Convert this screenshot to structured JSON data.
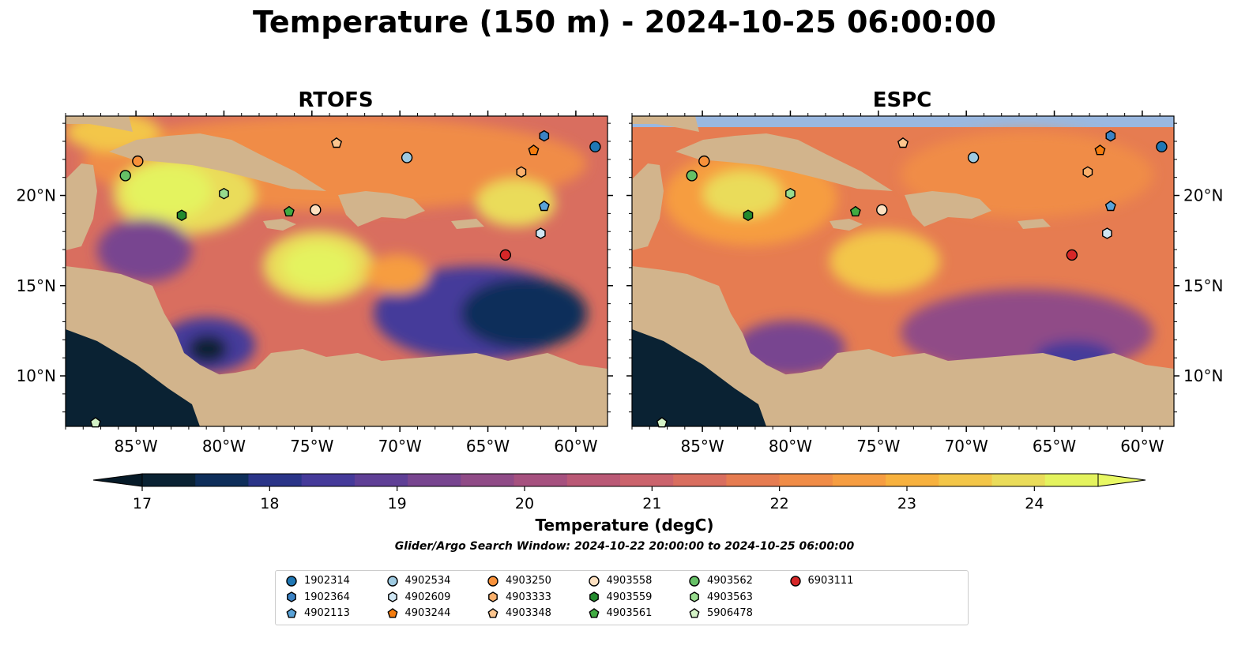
{
  "title": "Temperature (150 m) - 2024-10-25 06:00:00",
  "panels": [
    {
      "title": "RTOFS",
      "model": "rtofs"
    },
    {
      "title": "ESPC",
      "model": "espc"
    }
  ],
  "axes": {
    "lon_ticks": [
      "85°W",
      "80°W",
      "75°W",
      "70°W",
      "65°W",
      "60°W"
    ],
    "lat_ticks": [
      "20°N",
      "15°N",
      "10°N"
    ]
  },
  "colorbar": {
    "label": "Temperature (degC)",
    "ticks": [
      "17",
      "18",
      "19",
      "20",
      "21",
      "22",
      "23",
      "24"
    ],
    "colors": [
      "#0a2233",
      "#0e2e5a",
      "#2a3488",
      "#453a9a",
      "#5f3f96",
      "#784590",
      "#904b87",
      "#a6517f",
      "#ba5976",
      "#cb636c",
      "#d96e5f",
      "#e67c51",
      "#f08c47",
      "#f69d41",
      "#f7b13e",
      "#f3c648",
      "#eadc5a",
      "#e4f35e"
    ],
    "extend_low": "#061a28",
    "extend_high": "#e8f864"
  },
  "search_window": "Glider/Argo Search Window: 2024-10-22 20:00:00 to 2024-10-25 06:00:00",
  "legend": [
    {
      "id": "1902314",
      "marker": "circle",
      "color": "#1f77b4"
    },
    {
      "id": "1902364",
      "marker": "hexagon",
      "color": "#3b82c4"
    },
    {
      "id": "4902113",
      "marker": "pentagon",
      "color": "#5aa3d8"
    },
    {
      "id": "4902534",
      "marker": "circle",
      "color": "#9ecae1"
    },
    {
      "id": "4902609",
      "marker": "hexagon",
      "color": "#cfe6f3"
    },
    {
      "id": "4903244",
      "marker": "pentagon",
      "color": "#f47c0e"
    },
    {
      "id": "4903250",
      "marker": "circle",
      "color": "#f8913a"
    },
    {
      "id": "4903333",
      "marker": "hexagon",
      "color": "#fbb06c"
    },
    {
      "id": "4903348",
      "marker": "pentagon",
      "color": "#fcc58e"
    },
    {
      "id": "4903558",
      "marker": "circle",
      "color": "#fde0c0"
    },
    {
      "id": "4903559",
      "marker": "hexagon",
      "color": "#238b2e"
    },
    {
      "id": "4903561",
      "marker": "pentagon",
      "color": "#41ab42"
    },
    {
      "id": "4903562",
      "marker": "circle",
      "color": "#66c066"
    },
    {
      "id": "4903563",
      "marker": "hexagon",
      "color": "#98dc8e"
    },
    {
      "id": "5906478",
      "marker": "pentagon",
      "color": "#d4f2c6"
    },
    {
      "id": "6903111",
      "marker": "circle",
      "color": "#d62728"
    }
  ],
  "floats": [
    {
      "id": "1902314",
      "lon": -58.9,
      "lat": 22.7
    },
    {
      "id": "1902364",
      "lon": -61.8,
      "lat": 23.3
    },
    {
      "id": "4902113",
      "lon": -61.8,
      "lat": 19.4
    },
    {
      "id": "4902534",
      "lon": -69.6,
      "lat": 22.1
    },
    {
      "id": "4902609",
      "lon": -62.0,
      "lat": 17.9
    },
    {
      "id": "4903244",
      "lon": -62.4,
      "lat": 22.5
    },
    {
      "id": "4903250",
      "lon": -84.9,
      "lat": 21.9
    },
    {
      "id": "4903333",
      "lon": -63.1,
      "lat": 21.3
    },
    {
      "id": "4903348",
      "lon": -73.6,
      "lat": 22.9
    },
    {
      "id": "4903558",
      "lon": -74.8,
      "lat": 19.2
    },
    {
      "id": "4903559",
      "lon": -82.4,
      "lat": 18.9
    },
    {
      "id": "4903561",
      "lon": -76.3,
      "lat": 19.1
    },
    {
      "id": "4903562",
      "lon": -85.6,
      "lat": 21.1
    },
    {
      "id": "4903563",
      "lon": -80.0,
      "lat": 20.1
    },
    {
      "id": "5906478",
      "lon": -87.3,
      "lat": 7.4
    },
    {
      "id": "6903111",
      "lon": -64.0,
      "lat": 16.7
    }
  ]
}
